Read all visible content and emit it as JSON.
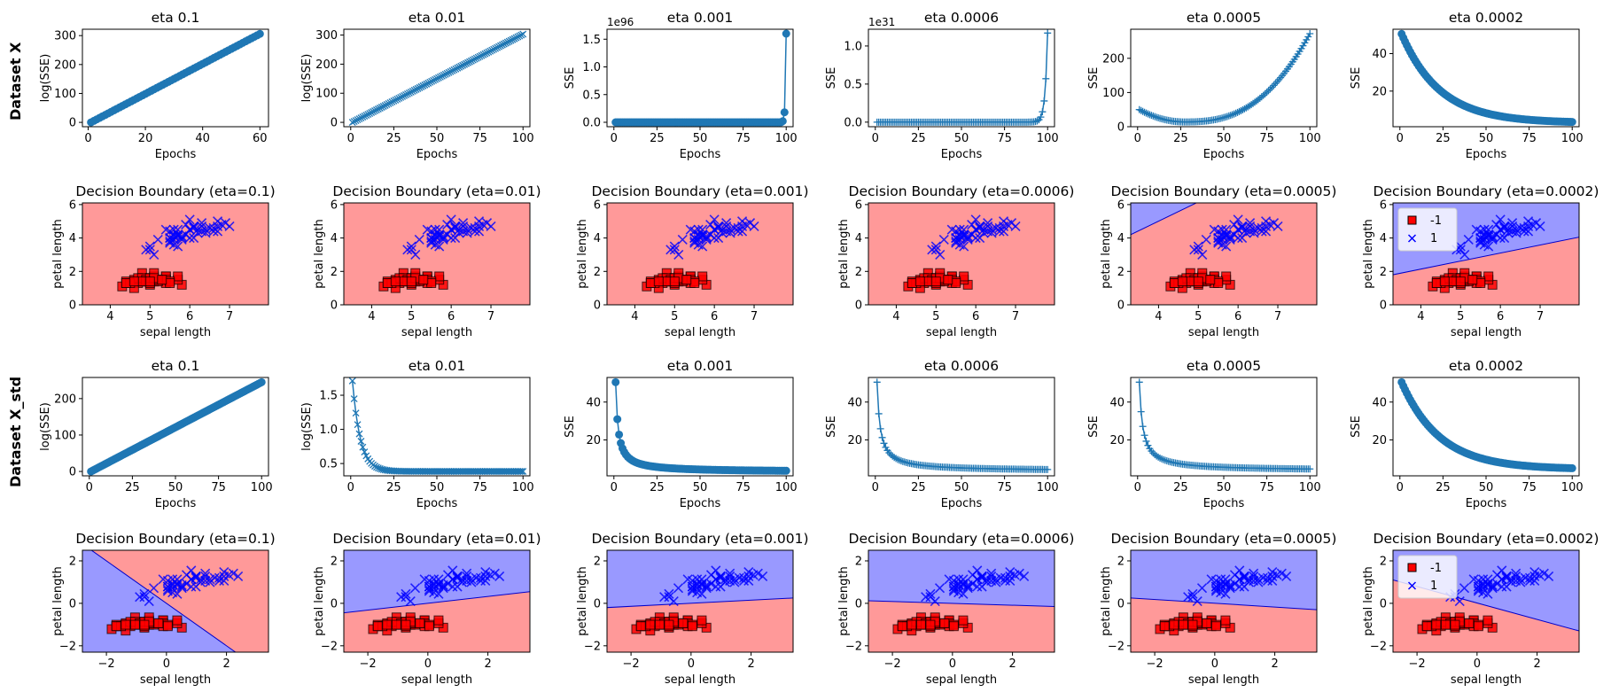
{
  "figure": {
    "row_labels": [
      "Dataset X",
      "Dataset X_std"
    ]
  },
  "chart_data": [
    {
      "id": "x-sse-0.1",
      "type": "line",
      "title": "eta 0.1",
      "xlabel": "Epochs",
      "ylabel": "log(SSE)",
      "xlim": [
        -2,
        63
      ],
      "ylim": [
        -15,
        322
      ],
      "xticks": [
        0,
        20,
        40,
        60
      ],
      "yticks": [
        0,
        100,
        200,
        300
      ],
      "marker": "o",
      "curve": {
        "kind": "linear",
        "n": 60,
        "start": 0,
        "end": 306
      }
    },
    {
      "id": "x-sse-0.01",
      "type": "line",
      "title": "eta 0.01",
      "xlabel": "Epochs",
      "ylabel": "log(SSE)",
      "xlim": [
        -4,
        104
      ],
      "ylim": [
        -15,
        320
      ],
      "xticks": [
        0,
        25,
        50,
        75,
        100
      ],
      "yticks": [
        0,
        100,
        200,
        300
      ],
      "marker": "x",
      "curve": {
        "kind": "linear",
        "n": 100,
        "start": 0,
        "end": 303
      }
    },
    {
      "id": "x-sse-0.001",
      "type": "line",
      "title": "eta 0.001",
      "xlabel": "Epochs",
      "ylabel": "SSE",
      "offset": "1e96",
      "xlim": [
        -4,
        104
      ],
      "ylim": [
        -0.08,
        1.68
      ],
      "xticks": [
        0,
        25,
        50,
        75,
        100
      ],
      "yticks": [
        0,
        0.5,
        1.0,
        1.5
      ],
      "ytick_labels": [
        "0.0",
        "0.5",
        "1.0",
        "1.5"
      ],
      "marker": "o",
      "curve": {
        "kind": "spike",
        "n": 100,
        "tail": [
          0.18,
          1.6
        ]
      }
    },
    {
      "id": "x-sse-0.0006",
      "type": "line",
      "title": "eta 0.0006",
      "xlabel": "Epochs",
      "ylabel": "SSE",
      "offset": "1e31",
      "xlim": [
        -4,
        104
      ],
      "ylim": [
        -0.06,
        1.22
      ],
      "xticks": [
        0,
        25,
        50,
        75,
        100
      ],
      "yticks": [
        0,
        0.5,
        1.0
      ],
      "ytick_labels": [
        "0.0",
        "0.5",
        "1.0"
      ],
      "marker": "+",
      "curve": {
        "kind": "exp_blowup",
        "n": 100,
        "end": 1.17,
        "ratio": 2.05
      }
    },
    {
      "id": "x-sse-0.0005",
      "type": "line",
      "title": "eta 0.0005",
      "xlabel": "Epochs",
      "ylabel": "SSE",
      "xlim": [
        -4,
        104
      ],
      "ylim": [
        0,
        285
      ],
      "xticks": [
        0,
        25,
        50,
        75,
        100
      ],
      "yticks": [
        0,
        100,
        200
      ],
      "marker": "+",
      "curve": {
        "kind": "u_shape",
        "n": 100,
        "start": 50,
        "min": 14,
        "min_at": 27,
        "end": 272
      }
    },
    {
      "id": "x-sse-0.0002",
      "type": "line",
      "title": "eta 0.0002",
      "xlabel": "Epochs",
      "ylabel": "SSE",
      "xlim": [
        -4,
        104
      ],
      "ylim": [
        1,
        53
      ],
      "xticks": [
        0,
        25,
        50,
        75,
        100
      ],
      "yticks": [
        20,
        40
      ],
      "marker": "o",
      "curve": {
        "kind": "decay",
        "n": 100,
        "start": 50.5,
        "end": 3,
        "rate": 0.045
      }
    },
    {
      "id": "x-db-0.1",
      "type": "scatter",
      "title": "Decision Boundary (eta=0.1)",
      "xlabel": "sepal length",
      "ylabel": "petal length",
      "dataset": "raw",
      "xlim": [
        3.3,
        7.98
      ],
      "ylim": [
        0,
        6.1
      ],
      "xticks": [
        4,
        5,
        6,
        7
      ],
      "yticks": [
        0,
        2,
        4,
        6
      ],
      "boundary": null,
      "full_region": "-1",
      "legend": false
    },
    {
      "id": "x-db-0.01",
      "type": "scatter",
      "title": "Decision Boundary (eta=0.01)",
      "xlabel": "sepal length",
      "ylabel": "petal length",
      "dataset": "raw",
      "xlim": [
        3.3,
        7.98
      ],
      "ylim": [
        0,
        6.1
      ],
      "xticks": [
        4,
        5,
        6,
        7
      ],
      "yticks": [
        0,
        2,
        4,
        6
      ],
      "boundary": null,
      "full_region": "-1",
      "legend": false
    },
    {
      "id": "x-db-0.001",
      "type": "scatter",
      "title": "Decision Boundary (eta=0.001)",
      "xlabel": "sepal length",
      "ylabel": "petal length",
      "dataset": "raw",
      "xlim": [
        3.3,
        7.98
      ],
      "ylim": [
        0,
        6.1
      ],
      "xticks": [
        4,
        5,
        6,
        7
      ],
      "yticks": [
        0,
        2,
        4,
        6
      ],
      "boundary": null,
      "full_region": "-1",
      "legend": false
    },
    {
      "id": "x-db-0.0006",
      "type": "scatter",
      "title": "Decision Boundary (eta=0.0006)",
      "xlabel": "sepal length",
      "ylabel": "petal length",
      "dataset": "raw",
      "xlim": [
        3.3,
        7.98
      ],
      "ylim": [
        0,
        6.1
      ],
      "xticks": [
        4,
        5,
        6,
        7
      ],
      "yticks": [
        0,
        2,
        4,
        6
      ],
      "boundary": null,
      "full_region": "-1",
      "legend": false
    },
    {
      "id": "x-db-0.0005",
      "type": "scatter",
      "title": "Decision Boundary (eta=0.0005)",
      "xlabel": "sepal length",
      "ylabel": "petal length",
      "dataset": "raw",
      "xlim": [
        3.3,
        7.98
      ],
      "ylim": [
        0,
        6.1
      ],
      "xticks": [
        4,
        5,
        6,
        7
      ],
      "yticks": [
        0,
        2,
        4,
        6
      ],
      "boundary": {
        "p1": [
          3.3,
          4.2
        ],
        "p2": [
          4.95,
          6.1
        ],
        "above": "1"
      },
      "legend": false
    },
    {
      "id": "x-db-0.0002",
      "type": "scatter",
      "title": "Decision Boundary (eta=0.0002)",
      "xlabel": "sepal length",
      "ylabel": "petal length",
      "dataset": "raw",
      "xlim": [
        3.3,
        7.98
      ],
      "ylim": [
        0,
        6.1
      ],
      "xticks": [
        4,
        5,
        6,
        7
      ],
      "yticks": [
        0,
        2,
        4,
        6
      ],
      "boundary": {
        "p1": [
          3.3,
          1.8
        ],
        "p2": [
          7.98,
          4.05
        ],
        "above": "1"
      },
      "legend": true
    },
    {
      "id": "xstd-sse-0.1",
      "type": "line",
      "title": "eta 0.1",
      "xlabel": "Epochs",
      "ylabel": "log(SSE)",
      "xlim": [
        -4,
        104
      ],
      "ylim": [
        -12,
        258
      ],
      "xticks": [
        0,
        25,
        50,
        75,
        100
      ],
      "yticks": [
        0,
        100,
        200
      ],
      "marker": "o",
      "curve": {
        "kind": "linear",
        "n": 100,
        "start": 0,
        "end": 245
      }
    },
    {
      "id": "xstd-sse-0.01",
      "type": "line",
      "title": "eta 0.01",
      "xlabel": "Epochs",
      "ylabel": "log(SSE)",
      "xlim": [
        -4,
        104
      ],
      "ylim": [
        0.32,
        1.76
      ],
      "xticks": [
        0,
        25,
        50,
        75,
        100
      ],
      "yticks": [
        0.5,
        1.0,
        1.5
      ],
      "ytick_labels": [
        "0.5",
        "1.0",
        "1.5"
      ],
      "marker": "x",
      "curve": {
        "kind": "decay",
        "n": 100,
        "start": 1.71,
        "end": 0.385,
        "rate": 0.22
      }
    },
    {
      "id": "xstd-sse-0.001",
      "type": "line",
      "title": "eta 0.001",
      "xlabel": "Epochs",
      "ylabel": "SSE",
      "xlim": [
        -4,
        104
      ],
      "ylim": [
        1,
        53
      ],
      "xticks": [
        0,
        25,
        50,
        75,
        100
      ],
      "yticks": [
        20,
        40
      ],
      "marker": "o",
      "curve": {
        "kind": "hyper",
        "n": 100,
        "start": 50.5,
        "end": 3
      }
    },
    {
      "id": "xstd-sse-0.0006",
      "type": "line",
      "title": "eta 0.0006",
      "xlabel": "Epochs",
      "ylabel": "SSE",
      "xlim": [
        -4,
        104
      ],
      "ylim": [
        1,
        53
      ],
      "xticks": [
        0,
        25,
        50,
        75,
        100
      ],
      "yticks": [
        20,
        40
      ],
      "marker": "+",
      "curve": {
        "kind": "hyper",
        "n": 100,
        "start": 50.5,
        "end": 3.5,
        "k": 0.55
      }
    },
    {
      "id": "xstd-sse-0.0005",
      "type": "line",
      "title": "eta 0.0005",
      "xlabel": "Epochs",
      "ylabel": "SSE",
      "xlim": [
        -4,
        104
      ],
      "ylim": [
        1,
        53
      ],
      "xticks": [
        0,
        25,
        50,
        75,
        100
      ],
      "yticks": [
        20,
        40
      ],
      "marker": "+",
      "curve": {
        "kind": "hyper",
        "n": 100,
        "start": 50.5,
        "end": 3.7,
        "k": 0.5
      }
    },
    {
      "id": "xstd-sse-0.0002",
      "type": "line",
      "title": "eta 0.0002",
      "xlabel": "Epochs",
      "ylabel": "SSE",
      "xlim": [
        -4,
        104
      ],
      "ylim": [
        1,
        53
      ],
      "xticks": [
        0,
        25,
        50,
        75,
        100
      ],
      "yticks": [
        20,
        40
      ],
      "marker": "o",
      "curve": {
        "kind": "decay",
        "n": 100,
        "start": 50.5,
        "end": 4.5,
        "rate": 0.045
      }
    },
    {
      "id": "xstd-db-0.1",
      "type": "scatter",
      "title": "Decision Boundary (eta=0.1)",
      "xlabel": "sepal length",
      "ylabel": "petal length",
      "dataset": "std",
      "xlim": [
        -2.8,
        3.4
      ],
      "ylim": [
        -2.3,
        2.5
      ],
      "xticks": [
        -2,
        0,
        2
      ],
      "yticks": [
        -2,
        0,
        2
      ],
      "boundary": {
        "p1": [
          -2.5,
          2.5
        ],
        "p2": [
          2.3,
          -2.3
        ],
        "above": "-1"
      },
      "legend": false
    },
    {
      "id": "xstd-db-0.01",
      "type": "scatter",
      "title": "Decision Boundary (eta=0.01)",
      "xlabel": "sepal length",
      "ylabel": "petal length",
      "dataset": "std",
      "xlim": [
        -2.8,
        3.4
      ],
      "ylim": [
        -2.3,
        2.5
      ],
      "xticks": [
        -2,
        0,
        2
      ],
      "yticks": [
        -2,
        0,
        2
      ],
      "boundary": {
        "p1": [
          -2.8,
          -0.45
        ],
        "p2": [
          3.4,
          0.55
        ],
        "above": "1"
      },
      "legend": false
    },
    {
      "id": "xstd-db-0.001",
      "type": "scatter",
      "title": "Decision Boundary (eta=0.001)",
      "xlabel": "sepal length",
      "ylabel": "petal length",
      "dataset": "std",
      "xlim": [
        -2.8,
        3.4
      ],
      "ylim": [
        -2.3,
        2.5
      ],
      "xticks": [
        -2,
        0,
        2
      ],
      "yticks": [
        -2,
        0,
        2
      ],
      "boundary": {
        "p1": [
          -2.8,
          -0.2
        ],
        "p2": [
          3.4,
          0.25
        ],
        "above": "1"
      },
      "legend": false
    },
    {
      "id": "xstd-db-0.0006",
      "type": "scatter",
      "title": "Decision Boundary (eta=0.0006)",
      "xlabel": "sepal length",
      "ylabel": "petal length",
      "dataset": "std",
      "xlim": [
        -2.8,
        3.4
      ],
      "ylim": [
        -2.3,
        2.5
      ],
      "xticks": [
        -2,
        0,
        2
      ],
      "yticks": [
        -2,
        0,
        2
      ],
      "boundary": {
        "p1": [
          -2.8,
          0.12
        ],
        "p2": [
          3.4,
          -0.15
        ],
        "above": "1"
      },
      "legend": false
    },
    {
      "id": "xstd-db-0.0005",
      "type": "scatter",
      "title": "Decision Boundary (eta=0.0005)",
      "xlabel": "sepal length",
      "ylabel": "petal length",
      "dataset": "std",
      "xlim": [
        -2.8,
        3.4
      ],
      "ylim": [
        -2.3,
        2.5
      ],
      "xticks": [
        -2,
        0,
        2
      ],
      "yticks": [
        -2,
        0,
        2
      ],
      "boundary": {
        "p1": [
          -2.8,
          0.25
        ],
        "p2": [
          3.4,
          -0.3
        ],
        "above": "1"
      },
      "legend": false
    },
    {
      "id": "xstd-db-0.0002",
      "type": "scatter",
      "title": "Decision Boundary (eta=0.0002)",
      "xlabel": "sepal length",
      "ylabel": "petal length",
      "dataset": "std",
      "xlim": [
        -2.8,
        3.4
      ],
      "ylim": [
        -2.3,
        2.5
      ],
      "xticks": [
        -2,
        0,
        2
      ],
      "yticks": [
        -2,
        0,
        2
      ],
      "boundary": {
        "p1": [
          -2.8,
          1.1
        ],
        "p2": [
          3.4,
          -1.3
        ],
        "above": "1"
      },
      "legend": true
    }
  ],
  "legend": {
    "entries": [
      {
        "label": "-1",
        "marker": "square",
        "color": "#ff0000"
      },
      {
        "label": "1",
        "marker": "x",
        "color": "#0000ff"
      }
    ]
  },
  "colors": {
    "line": "#1f77b4",
    "region_pos": "#9999ff",
    "region_neg": "#ff9999",
    "class_neg": "#ff0000",
    "class_pos": "#0000ff"
  },
  "iris": {
    "setosa_raw": [
      [
        5.1,
        1.4
      ],
      [
        4.9,
        1.4
      ],
      [
        4.7,
        1.3
      ],
      [
        4.6,
        1.5
      ],
      [
        5.0,
        1.4
      ],
      [
        5.4,
        1.7
      ],
      [
        4.6,
        1.4
      ],
      [
        5.0,
        1.5
      ],
      [
        4.4,
        1.4
      ],
      [
        4.9,
        1.5
      ],
      [
        5.4,
        1.5
      ],
      [
        4.8,
        1.6
      ],
      [
        4.8,
        1.4
      ],
      [
        4.3,
        1.1
      ],
      [
        5.8,
        1.2
      ],
      [
        5.7,
        1.5
      ],
      [
        5.4,
        1.3
      ],
      [
        5.1,
        1.4
      ],
      [
        5.7,
        1.7
      ],
      [
        5.1,
        1.5
      ],
      [
        5.4,
        1.7
      ],
      [
        5.1,
        1.5
      ],
      [
        4.6,
        1.0
      ],
      [
        5.1,
        1.7
      ],
      [
        4.8,
        1.9
      ],
      [
        5.0,
        1.6
      ],
      [
        5.0,
        1.6
      ],
      [
        5.2,
        1.5
      ],
      [
        5.2,
        1.4
      ],
      [
        4.7,
        1.6
      ],
      [
        4.8,
        1.6
      ],
      [
        5.4,
        1.5
      ],
      [
        5.2,
        1.5
      ],
      [
        5.5,
        1.4
      ],
      [
        4.9,
        1.5
      ],
      [
        5.0,
        1.2
      ],
      [
        5.5,
        1.3
      ],
      [
        4.9,
        1.4
      ],
      [
        4.4,
        1.3
      ],
      [
        5.1,
        1.5
      ],
      [
        5.0,
        1.3
      ],
      [
        4.5,
        1.3
      ],
      [
        4.4,
        1.3
      ],
      [
        5.0,
        1.6
      ],
      [
        5.1,
        1.9
      ],
      [
        4.8,
        1.4
      ],
      [
        5.1,
        1.6
      ],
      [
        4.6,
        1.4
      ],
      [
        5.3,
        1.5
      ],
      [
        5.0,
        1.4
      ]
    ],
    "versicolor_raw": [
      [
        7.0,
        4.7
      ],
      [
        6.4,
        4.5
      ],
      [
        6.9,
        4.9
      ],
      [
        5.5,
        4.0
      ],
      [
        6.5,
        4.6
      ],
      [
        5.7,
        4.5
      ],
      [
        6.3,
        4.7
      ],
      [
        4.9,
        3.3
      ],
      [
        6.6,
        4.6
      ],
      [
        5.2,
        3.9
      ],
      [
        5.0,
        3.5
      ],
      [
        5.9,
        4.2
      ],
      [
        6.0,
        4.0
      ],
      [
        6.1,
        4.7
      ],
      [
        5.6,
        3.6
      ],
      [
        6.7,
        4.4
      ],
      [
        5.6,
        4.5
      ],
      [
        5.8,
        4.1
      ],
      [
        6.2,
        4.5
      ],
      [
        5.6,
        3.9
      ],
      [
        5.9,
        4.8
      ],
      [
        6.1,
        4.0
      ],
      [
        6.3,
        4.9
      ],
      [
        6.1,
        4.7
      ],
      [
        6.4,
        4.3
      ],
      [
        6.6,
        4.4
      ],
      [
        6.8,
        4.8
      ],
      [
        6.7,
        5.0
      ],
      [
        6.0,
        4.5
      ],
      [
        5.7,
        3.5
      ],
      [
        5.5,
        3.8
      ],
      [
        5.5,
        3.7
      ],
      [
        5.8,
        3.9
      ],
      [
        6.0,
        5.1
      ],
      [
        5.4,
        4.5
      ],
      [
        6.0,
        4.5
      ],
      [
        6.7,
        4.7
      ],
      [
        6.3,
        4.4
      ],
      [
        5.6,
        4.1
      ],
      [
        5.5,
        4.0
      ],
      [
        5.5,
        4.4
      ],
      [
        6.1,
        4.6
      ],
      [
        5.8,
        4.0
      ],
      [
        5.0,
        3.3
      ],
      [
        5.6,
        4.2
      ],
      [
        5.7,
        4.2
      ],
      [
        5.7,
        4.2
      ],
      [
        6.2,
        4.3
      ],
      [
        5.1,
        3.0
      ],
      [
        5.7,
        4.1
      ]
    ],
    "std_scale": {
      "x_mean": 5.471,
      "x_std": 0.641,
      "y_mean": 2.861,
      "y_std": 1.449
    }
  }
}
